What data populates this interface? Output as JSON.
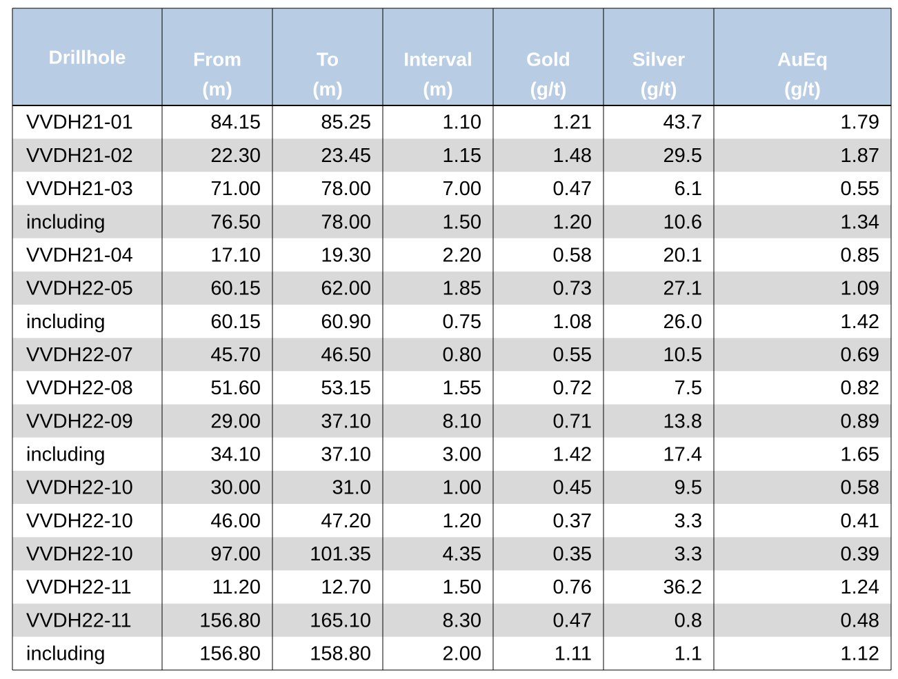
{
  "table": {
    "header": [
      [
        "Drillhole"
      ],
      [
        "From",
        "(m)"
      ],
      [
        "To",
        "(m)"
      ],
      [
        "Interval",
        "(m)"
      ],
      [
        "Gold",
        "(g/t)"
      ],
      [
        "Silver",
        "(g/t)"
      ],
      [
        "AuEq",
        "(g/t)"
      ]
    ],
    "rows": [
      [
        "VVDH21-01",
        "84.15",
        "85.25",
        "1.10",
        "1.21",
        "43.7",
        "1.79"
      ],
      [
        "VVDH21-02",
        "22.30",
        "23.45",
        "1.15",
        "1.48",
        "29.5",
        "1.87"
      ],
      [
        "VVDH21-03",
        "71.00",
        "78.00",
        "7.00",
        "0.47",
        "6.1",
        "0.55"
      ],
      [
        "including",
        "76.50",
        "78.00",
        "1.50",
        "1.20",
        "10.6",
        "1.34"
      ],
      [
        "VVDH21-04",
        "17.10",
        "19.30",
        "2.20",
        "0.58",
        "20.1",
        "0.85"
      ],
      [
        "VVDH22-05",
        "60.15",
        "62.00",
        "1.85",
        "0.73",
        "27.1",
        "1.09"
      ],
      [
        "including",
        "60.15",
        "60.90",
        "0.75",
        "1.08",
        "26.0",
        "1.42"
      ],
      [
        "VVDH22-07",
        "45.70",
        "46.50",
        "0.80",
        "0.55",
        "10.5",
        "0.69"
      ],
      [
        "VVDH22-08",
        "51.60",
        "53.15",
        "1.55",
        "0.72",
        "7.5",
        "0.82"
      ],
      [
        "VVDH22-09",
        "29.00",
        "37.10",
        "8.10",
        "0.71",
        "13.8",
        "0.89"
      ],
      [
        "including",
        "34.10",
        "37.10",
        "3.00",
        "1.42",
        "17.4",
        "1.65"
      ],
      [
        "VVDH22-10",
        "30.00",
        "31.0",
        "1.00",
        "0.45",
        "9.5",
        "0.58"
      ],
      [
        "VVDH22-10",
        "46.00",
        "47.20",
        "1.20",
        "0.37",
        "3.3",
        "0.41"
      ],
      [
        "VVDH22-10",
        "97.00",
        "101.35",
        "4.35",
        "0.35",
        "3.3",
        "0.39"
      ],
      [
        "VVDH22-11",
        "11.20",
        "12.70",
        "1.50",
        "0.76",
        "36.2",
        "1.24"
      ],
      [
        "VVDH22-11",
        "156.80",
        "165.10",
        "8.30",
        "0.47",
        "0.8",
        "0.48"
      ],
      [
        "including",
        "156.80",
        "158.80",
        "2.00",
        "1.11",
        "1.1",
        "1.12"
      ]
    ]
  }
}
